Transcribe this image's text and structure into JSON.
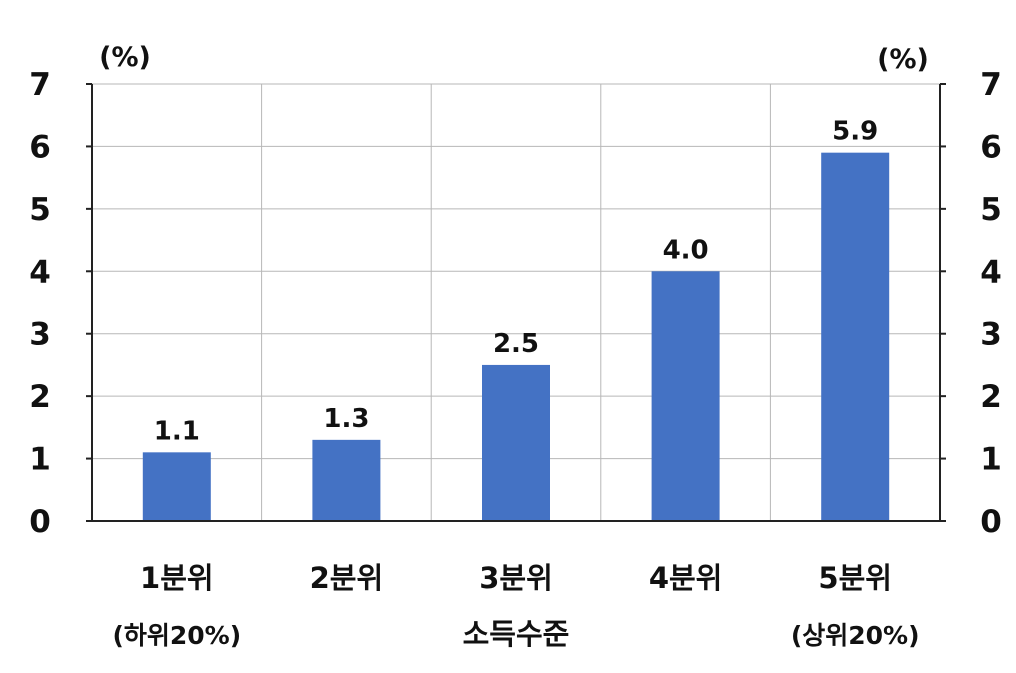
{
  "chart_data": {
    "type": "bar",
    "categories": [
      "1분위",
      "2분위",
      "3분위",
      "4분위",
      "5분위"
    ],
    "category_sublabels": [
      "(하위20%)",
      "",
      "",
      "",
      "(상위20%)"
    ],
    "values": [
      1.1,
      1.3,
      2.5,
      4.0,
      5.9
    ],
    "data_labels": [
      "1.1",
      "1.3",
      "2.5",
      "4.0",
      "5.9"
    ],
    "xlabel": "소득수준",
    "ylabel_left": "(%)",
    "ylabel_right": "(%)",
    "ylim": [
      0,
      7
    ],
    "yticks": [
      0,
      1,
      2,
      3,
      4,
      5,
      6,
      7
    ],
    "grid": true,
    "bar_color": "#4472C4",
    "legend": "none"
  }
}
